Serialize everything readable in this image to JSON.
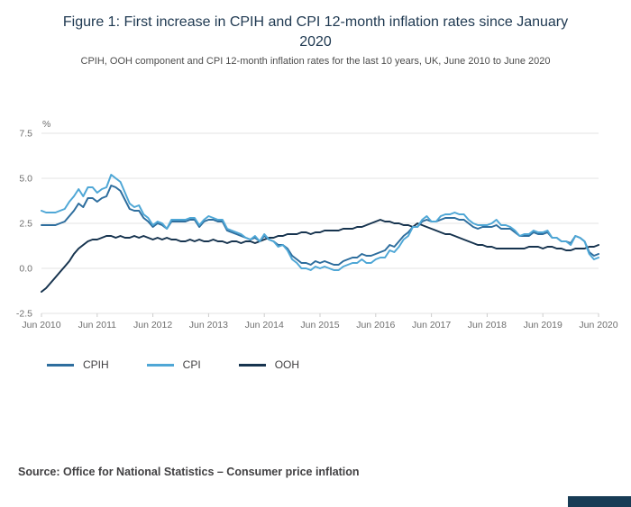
{
  "header": {
    "title": "Figure 1: First increase in CPIH and CPI 12-month inflation rates since January 2020",
    "subtitle": "CPIH, OOH component and CPI 12-month inflation rates for the last 10 years, UK, June 2010 to June 2020"
  },
  "chart_data": {
    "type": "line",
    "unit_label": "%",
    "ylim": [
      -2.5,
      7.5
    ],
    "yticks": [
      -2.5,
      0.0,
      2.5,
      5.0,
      7.5
    ],
    "ytick_labels": [
      "-2.5",
      "0.0",
      "2.5",
      "5.0",
      "7.5"
    ],
    "xtick_labels": [
      "Jun 2010",
      "Jun 2011",
      "Jun 2012",
      "Jun 2013",
      "Jun 2014",
      "Jun 2015",
      "Jun 2016",
      "Jun 2017",
      "Jun 2018",
      "Jun 2019",
      "Jun 2020"
    ],
    "xtick_positions": [
      0,
      12,
      24,
      36,
      48,
      60,
      72,
      84,
      96,
      108,
      120
    ],
    "x_unit": "monthly index from June 2010 to June 2020",
    "grid": "horizontal",
    "legend_position": "bottom-left",
    "series": [
      {
        "name": "CPIH",
        "color": "#2e6e9e",
        "values": [
          2.4,
          2.4,
          2.4,
          2.4,
          2.5,
          2.6,
          2.9,
          3.2,
          3.6,
          3.4,
          3.9,
          3.9,
          3.7,
          3.9,
          4.0,
          4.6,
          4.5,
          4.3,
          3.8,
          3.3,
          3.2,
          3.2,
          2.8,
          2.6,
          2.3,
          2.5,
          2.4,
          2.2,
          2.6,
          2.6,
          2.6,
          2.6,
          2.7,
          2.7,
          2.3,
          2.6,
          2.7,
          2.7,
          2.6,
          2.6,
          2.1,
          2.0,
          1.9,
          1.8,
          1.7,
          1.6,
          1.7,
          1.5,
          1.8,
          1.6,
          1.5,
          1.3,
          1.3,
          1.1,
          0.7,
          0.5,
          0.3,
          0.3,
          0.2,
          0.4,
          0.3,
          0.4,
          0.3,
          0.2,
          0.2,
          0.4,
          0.5,
          0.6,
          0.6,
          0.8,
          0.7,
          0.7,
          0.8,
          0.9,
          1.0,
          1.3,
          1.2,
          1.5,
          1.8,
          2.0,
          2.3,
          2.3,
          2.6,
          2.7,
          2.6,
          2.6,
          2.7,
          2.8,
          2.8,
          2.8,
          2.7,
          2.7,
          2.5,
          2.3,
          2.2,
          2.3,
          2.3,
          2.3,
          2.4,
          2.2,
          2.2,
          2.2,
          2.0,
          1.8,
          1.8,
          1.8,
          2.0,
          1.9,
          1.9,
          2.0,
          1.7,
          1.7,
          1.5,
          1.5,
          1.4,
          1.8,
          1.7,
          1.5,
          0.9,
          0.7,
          0.8
        ]
      },
      {
        "name": "CPI",
        "color": "#4fa7d6",
        "values": [
          3.2,
          3.1,
          3.1,
          3.1,
          3.2,
          3.3,
          3.7,
          4.0,
          4.4,
          4.0,
          4.5,
          4.5,
          4.2,
          4.4,
          4.5,
          5.2,
          5.0,
          4.8,
          4.2,
          3.6,
          3.4,
          3.5,
          3.0,
          2.8,
          2.4,
          2.6,
          2.5,
          2.2,
          2.7,
          2.7,
          2.7,
          2.7,
          2.8,
          2.8,
          2.4,
          2.7,
          2.9,
          2.8,
          2.7,
          2.7,
          2.2,
          2.1,
          2.0,
          1.9,
          1.7,
          1.6,
          1.8,
          1.5,
          1.9,
          1.6,
          1.5,
          1.2,
          1.3,
          1.0,
          0.5,
          0.3,
          0.0,
          0.0,
          -0.1,
          0.1,
          0.0,
          0.1,
          0.0,
          -0.1,
          -0.1,
          0.1,
          0.2,
          0.3,
          0.3,
          0.5,
          0.3,
          0.3,
          0.5,
          0.6,
          0.6,
          1.0,
          0.9,
          1.2,
          1.6,
          1.8,
          2.3,
          2.3,
          2.7,
          2.9,
          2.6,
          2.6,
          2.9,
          3.0,
          3.0,
          3.1,
          3.0,
          3.0,
          2.7,
          2.5,
          2.4,
          2.4,
          2.4,
          2.5,
          2.7,
          2.4,
          2.4,
          2.3,
          2.1,
          1.8,
          1.9,
          1.9,
          2.1,
          2.0,
          2.0,
          2.1,
          1.7,
          1.7,
          1.5,
          1.5,
          1.3,
          1.8,
          1.7,
          1.5,
          0.8,
          0.5,
          0.6
        ]
      },
      {
        "name": "OOH",
        "color": "#17344f",
        "values": [
          -1.3,
          -1.1,
          -0.8,
          -0.5,
          -0.2,
          0.1,
          0.4,
          0.8,
          1.1,
          1.3,
          1.5,
          1.6,
          1.6,
          1.7,
          1.8,
          1.8,
          1.7,
          1.8,
          1.7,
          1.7,
          1.8,
          1.7,
          1.8,
          1.7,
          1.6,
          1.7,
          1.6,
          1.7,
          1.6,
          1.6,
          1.5,
          1.5,
          1.6,
          1.5,
          1.6,
          1.5,
          1.5,
          1.6,
          1.5,
          1.5,
          1.4,
          1.5,
          1.5,
          1.4,
          1.5,
          1.5,
          1.4,
          1.5,
          1.6,
          1.7,
          1.7,
          1.8,
          1.8,
          1.9,
          1.9,
          1.9,
          2.0,
          2.0,
          1.9,
          2.0,
          2.0,
          2.1,
          2.1,
          2.1,
          2.1,
          2.2,
          2.2,
          2.2,
          2.3,
          2.3,
          2.4,
          2.5,
          2.6,
          2.7,
          2.6,
          2.6,
          2.5,
          2.5,
          2.4,
          2.4,
          2.3,
          2.5,
          2.4,
          2.3,
          2.2,
          2.1,
          2.0,
          1.9,
          1.9,
          1.8,
          1.7,
          1.6,
          1.5,
          1.4,
          1.3,
          1.3,
          1.2,
          1.2,
          1.1,
          1.1,
          1.1,
          1.1,
          1.1,
          1.1,
          1.1,
          1.2,
          1.2,
          1.2,
          1.1,
          1.2,
          1.2,
          1.1,
          1.1,
          1.0,
          1.0,
          1.1,
          1.1,
          1.1,
          1.2,
          1.2,
          1.3
        ]
      }
    ]
  },
  "source": {
    "text": "Source: Office for National Statistics – Consumer price inflation"
  }
}
